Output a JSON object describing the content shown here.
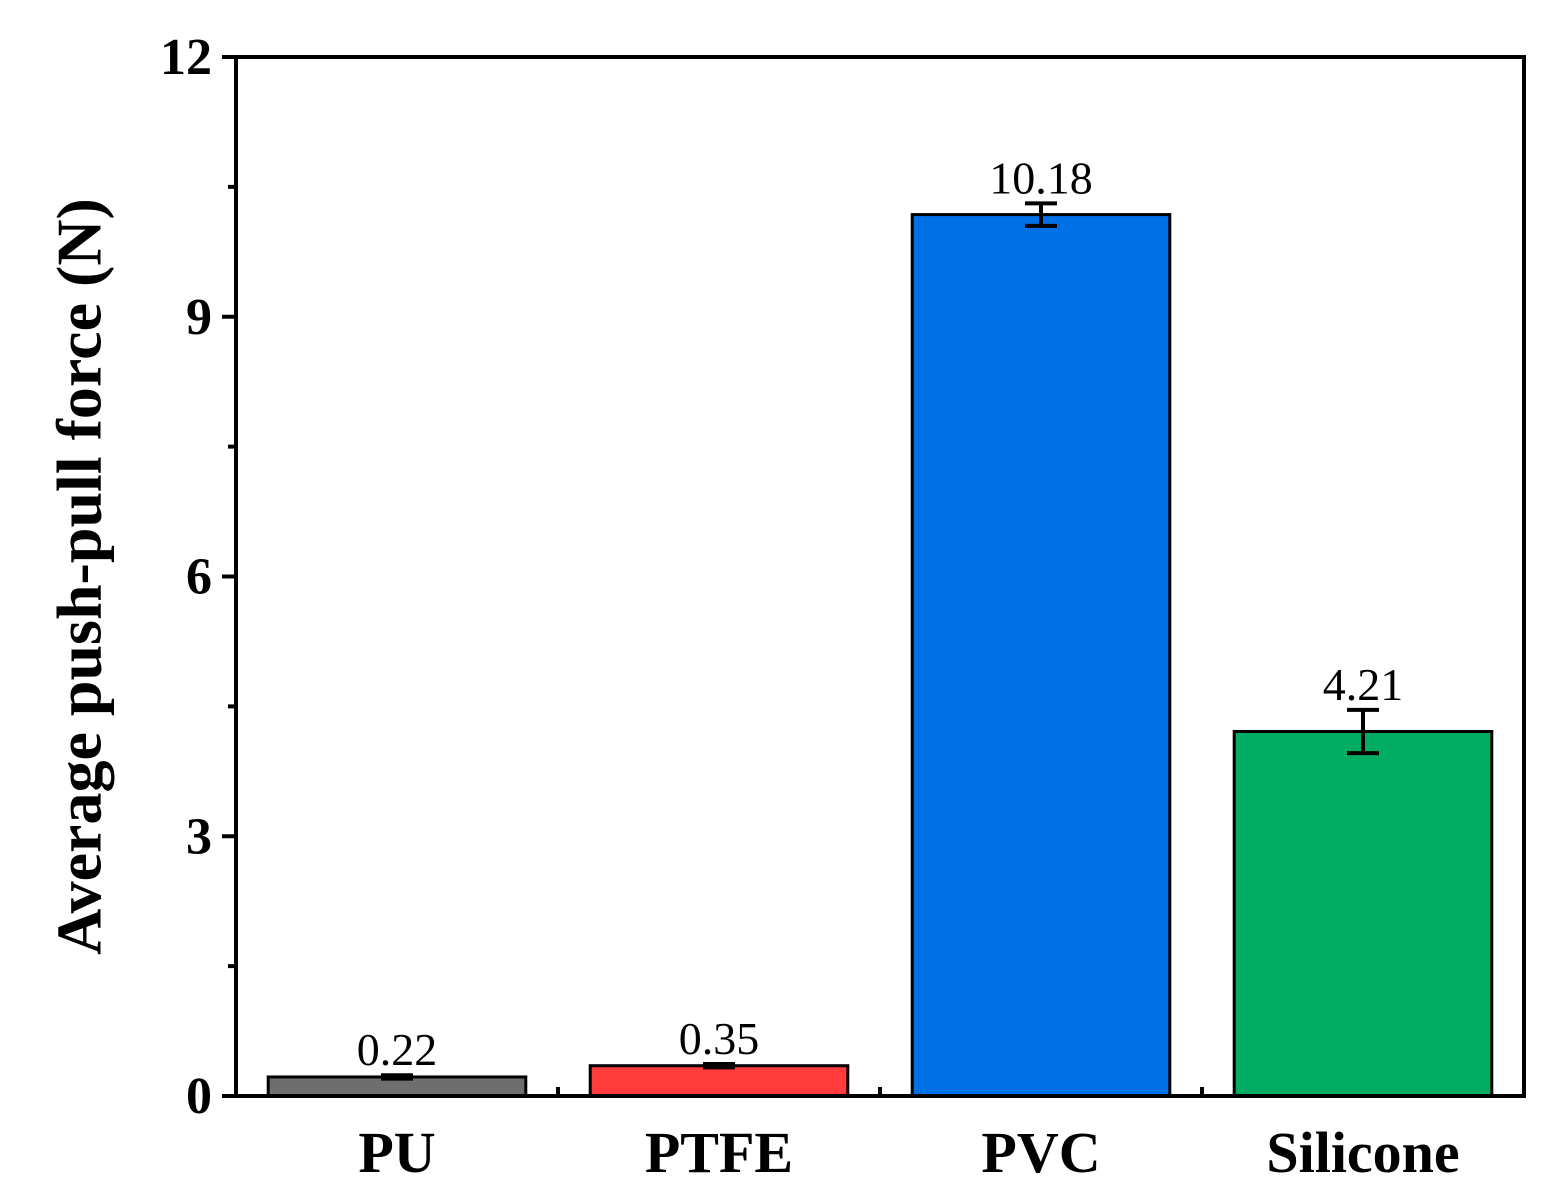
{
  "chart_data": {
    "type": "bar",
    "title": "",
    "xlabel": "",
    "ylabel": "Average push-pull force (N)",
    "ylim": [
      0,
      12
    ],
    "yticks": [
      0,
      3,
      6,
      9,
      12
    ],
    "yminor_step": 1.5,
    "grid": false,
    "categories": [
      "PU",
      "PTFE",
      "PVC",
      "Silicone"
    ],
    "values": [
      0.22,
      0.35,
      10.18,
      4.21
    ],
    "value_labels": [
      "0.22",
      "0.35",
      "10.18",
      "4.21"
    ],
    "errors": [
      0.02,
      0.02,
      0.13,
      0.25
    ],
    "colors": [
      "#6e6e6e",
      "#ff3b3b",
      "#0070e6",
      "#00ad63"
    ]
  }
}
